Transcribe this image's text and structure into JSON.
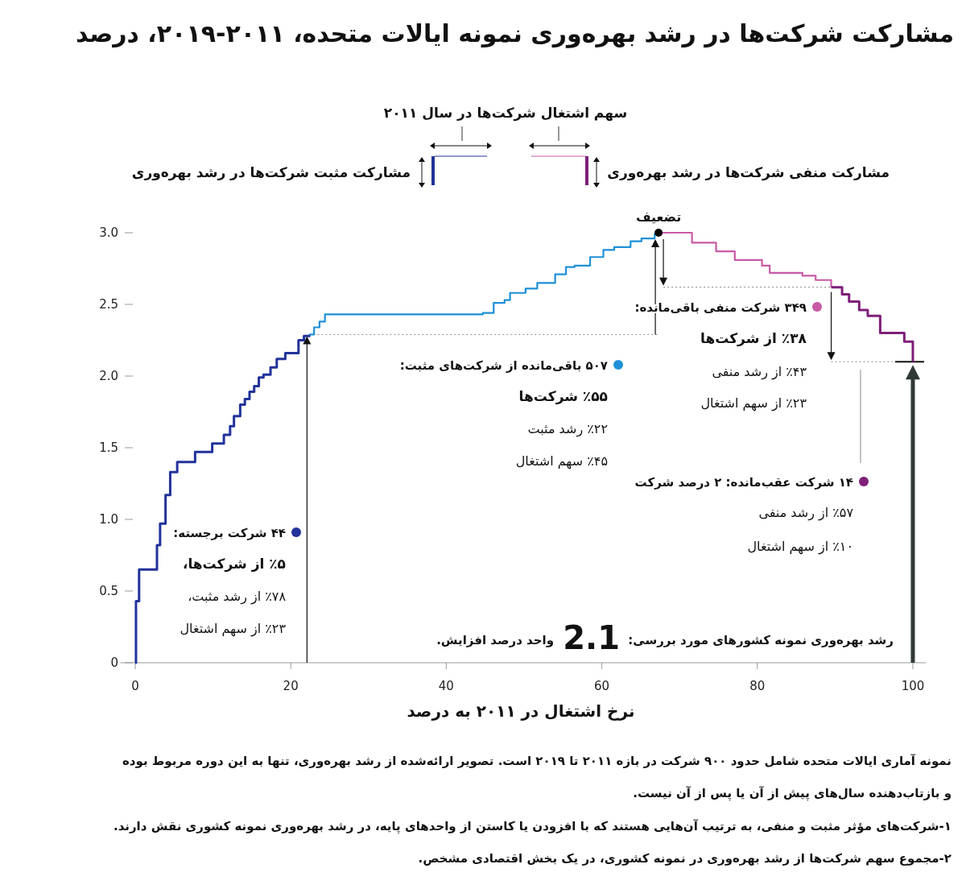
{
  "chart_data": {
    "type": "step",
    "title": "مشارکت شرکت‌ها در رشد بهره‌وری نمونه ایالات متحده، ۲۰۱۱-۲۰۱۹، درصد",
    "xlabel": "نرخ اشتغال در ۲۰۱۱ به درصد",
    "xlim": [
      -1.9,
      101.7
    ],
    "xticks": [
      0,
      20,
      40,
      60,
      80,
      100
    ],
    "ylim": [
      0,
      3.0
    ],
    "yticks": [
      0,
      0.5,
      {
        "value": 1,
        "label": "1.0"
      },
      1.5,
      {
        "value": 2,
        "label": "2.0"
      },
      2.5,
      {
        "value": 3,
        "label": "3.0"
      }
    ],
    "grid": false,
    "legend": "center",
    "series": [
      {
        "name": "۴۴ شرکت برجسته:",
        "color": "#22329a",
        "x": [
          0,
          0.1,
          0.5,
          2.8,
          3.2,
          3.9,
          4.5,
          5.4,
          7.7,
          9.9,
          11.4,
          12.2,
          12.7,
          13.5,
          14.1,
          14.7,
          15.3,
          15.9,
          16.5,
          17.4,
          18.2,
          19.3,
          21.0,
          21.7,
          22.4
        ],
        "values": [
          0,
          0.43,
          0.65,
          0.82,
          0.97,
          1.17,
          1.33,
          1.4,
          1.47,
          1.53,
          1.59,
          1.65,
          1.72,
          1.8,
          1.84,
          1.89,
          1.93,
          1.99,
          2.01,
          2.06,
          2.12,
          2.16,
          2.25,
          2.28,
          2.29
        ]
      },
      {
        "name": "۵۰۷ باقی‌مانده از  شرکت‌های مثبت:",
        "color": "#1e90d8",
        "x": [
          22.4,
          23.0,
          23.7,
          24.4,
          44.7,
          46.1,
          47.5,
          48.2,
          50.2,
          51.7,
          54.0,
          55.4,
          56.5,
          58.5,
          60.2,
          61.6,
          63.7,
          65.1,
          66.8,
          67.3
        ],
        "values": [
          2.29,
          2.34,
          2.38,
          2.43,
          2.44,
          2.51,
          2.53,
          2.58,
          2.61,
          2.65,
          2.71,
          2.76,
          2.77,
          2.83,
          2.88,
          2.9,
          2.94,
          2.96,
          2.99,
          3.0
        ]
      },
      {
        "name": "۳۴۹ شرکت  منفی باقی‌مانده:",
        "color": "#c85aa6",
        "x": [
          67.3,
          71.6,
          72.7,
          74.7,
          77.1,
          80.6,
          81.6,
          85.8,
          87.5,
          89.5
        ],
        "values": [
          3.0,
          2.93,
          2.93,
          2.87,
          2.81,
          2.77,
          2.72,
          2.7,
          2.67,
          2.62
        ]
      },
      {
        "name": "۱۴ شرکت عقب‌مانده: ۲ درصد شرکت",
        "color": "#7e1f78",
        "x": [
          89.5,
          90.9,
          91.8,
          93.1,
          94.2,
          95.8,
          98.9,
          100
        ],
        "values": [
          2.62,
          2.57,
          2.52,
          2.46,
          2.42,
          2.3,
          2.24,
          2.1
        ]
      }
    ],
    "annotations": [
      "سهم اشتغال شرکت‌ها در سال ۲۰۱۱",
      "مشارکت مثبت شرکت‌ها در رشد بهره‌وری",
      "مشارکت منفی شرکت‌ها در رشد بهره‌وری",
      {
        "text": "تضعیف",
        "x": 67.3,
        "y": 3.0
      },
      "٪۵ از شرکت‌ها،",
      "٪۷۸ از رشد مثبت،",
      "٪۲۳ از سهم اشتغال",
      "٪۵۵ شرکت‌ها",
      "٪۲۲ رشد مثبت",
      "٪۴۵ سهم اشتغال",
      "٪۳۸ از شرکت‌ها",
      "٪۴۳ از رشد منفی",
      "٪۲۳ از سهم اشتغال",
      "٪۵۷ از رشد منفی",
      "٪۱۰ از سهم اشتغال",
      "رشد بهره‌وری نمونه کشورهای مورد بررسی:",
      "2.1",
      "واحد درصد افزایش.",
      "نمونه آماری ایالات متحده شامل حدود ۹۰۰ شرکت در بازه ۲۰۱۱ تا ۲۰۱۹ است. تصویر ارائه‌شده از رشد بهره‌وری، تنها به این دوره مربوط بوده",
      "و بازتاب‌دهنده سال‌های پیش از آن یا پس از آن نیست.",
      "۱-شرکت‌های مؤثر مثبت و منفی، به ترتیب آن‌هایی هستند که با افزودن یا کاستن از واحدهای پایه، در رشد بهره‌وری نمونه کشوری نقش دارند.",
      "۲-مجموع سهم شرکت‌ها از رشد بهره‌وری در نمونه کشوری، در یک بخش اقتصادی مشخص."
    ]
  }
}
